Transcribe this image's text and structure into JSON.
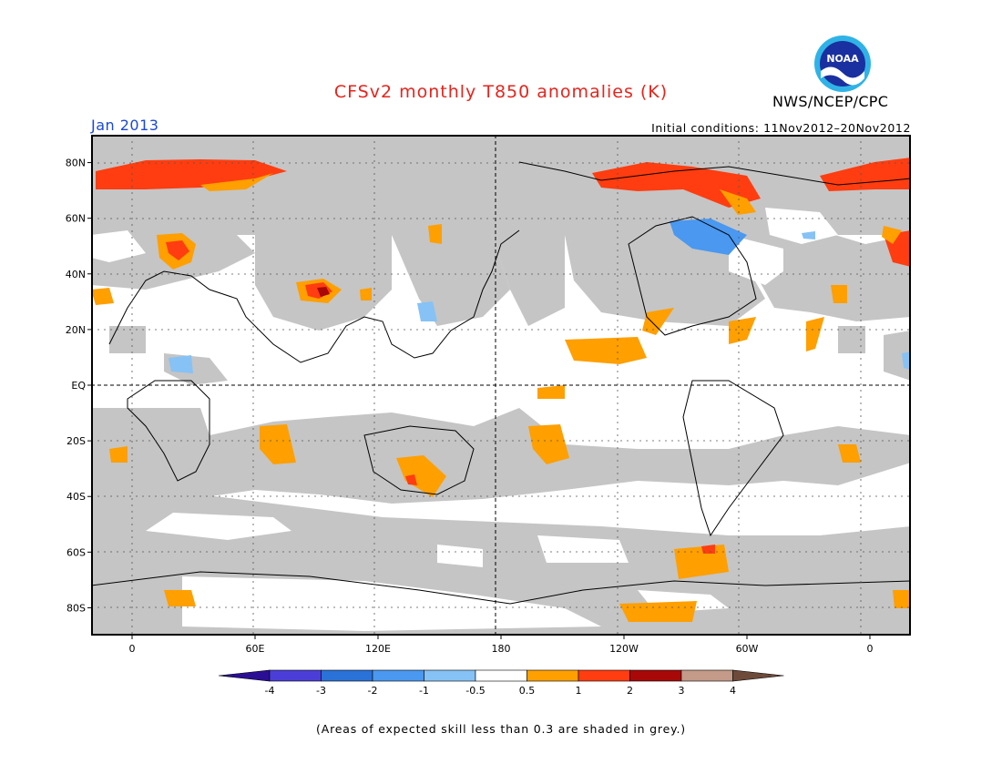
{
  "header": {
    "title": "CFSv2 monthly T850 anomalies (K)",
    "month": "Jan 2013",
    "initial_conditions": "Initial conditions: 11Nov2012–20Nov2012",
    "agency": "NWS/NCEP/CPC",
    "logo_text": "NOAA"
  },
  "map": {
    "lat_labels": [
      "80N",
      "60N",
      "40N",
      "20N",
      "EQ",
      "20S",
      "40S",
      "60S",
      "80S"
    ],
    "lon_labels": [
      "0",
      "60E",
      "120E",
      "180",
      "120W",
      "60W",
      "0"
    ],
    "lat_values": [
      80,
      60,
      40,
      20,
      0,
      -20,
      -40,
      -60,
      -80
    ],
    "lon_values": [
      0,
      60,
      120,
      180,
      240,
      300,
      360
    ],
    "lon_range": [
      -20,
      380
    ],
    "lat_range": [
      -90,
      90
    ]
  },
  "legend": {
    "labels": [
      "-4",
      "-3",
      "-2",
      "-1",
      "-0.5",
      "0.5",
      "1",
      "2",
      "3",
      "4"
    ],
    "colors": [
      "#2a0f95",
      "#4b3ed8",
      "#2a72d8",
      "#4a98f0",
      "#86c2f5",
      "#ffffff",
      "#ff9f00",
      "#ff3d10",
      "#a80808",
      "#c49a88",
      "#6e4a3a"
    ]
  },
  "footer": {
    "skill_note": "(Areas of expected skill less than 0.3 are shaded in grey.)"
  },
  "colors": {
    "grey_shade": "#c5c5c5",
    "title_red": "#e8231b",
    "month_blue": "#1a48d8"
  }
}
